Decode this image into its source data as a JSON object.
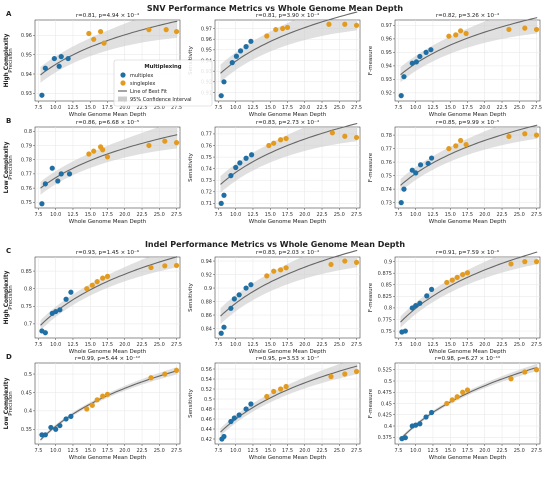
{
  "sections": [
    {
      "title": "SNV Performance Metrics vs Whole Genome Mean Depth"
    },
    {
      "title": "Indel Performance Metrics vs Whole Genome Mean Depth"
    }
  ],
  "legend": {
    "title": "Multiplexing",
    "items": [
      "multiplex",
      "singleplex",
      "Line of Best Fit",
      "95% Confidence Interval"
    ]
  },
  "colors": {
    "multiplex": "#1f6fa5",
    "singleplex": "#e39b1f",
    "fit": "#666666",
    "ci": "#cccccc"
  },
  "chart_data": [
    {
      "panel_letter": "A",
      "row_label": "High Complexity",
      "type": "scatter",
      "stat": "r=0.81, p=4.94 × 10⁻⁴",
      "xlabel": "Whole Genome Mean Depth",
      "ylabel": "Precision",
      "xlim": [
        7,
        28
      ],
      "ylim": [
        0.926,
        0.968
      ],
      "xticks": [
        7.5,
        10.0,
        12.5,
        15.0,
        17.5,
        20.0,
        22.5,
        25.0,
        27.5
      ],
      "yticks": [
        0.93,
        0.94,
        0.95,
        0.96
      ],
      "series": [
        {
          "name": "multiplex",
          "x": [
            8.0,
            8.5,
            9.8,
            10.5,
            10.8,
            11.8
          ],
          "y": [
            0.929,
            0.943,
            0.948,
            0.944,
            0.949,
            0.948
          ]
        },
        {
          "name": "singleplex",
          "x": [
            14.8,
            15.5,
            16.5,
            17.0,
            23.5,
            26.0,
            27.5
          ],
          "y": [
            0.961,
            0.958,
            0.962,
            0.956,
            0.963,
            0.963,
            0.962
          ]
        }
      ]
    },
    {
      "panel_letter": "",
      "row_label": "",
      "type": "scatter",
      "stat": "r=0.81, p=3.90 × 10⁻⁴",
      "xlabel": "Whole Genome Mean Depth",
      "ylabel": "Sensitivity",
      "xlim": [
        7,
        28
      ],
      "ylim": [
        0.902,
        0.978
      ],
      "xticks": [
        7.5,
        10.0,
        12.5,
        15.0,
        17.5,
        20.0,
        22.5,
        25.0,
        27.5
      ],
      "yticks": [
        0.91,
        0.92,
        0.93,
        0.94,
        0.95,
        0.96,
        0.97
      ],
      "series": [
        {
          "name": "multiplex",
          "x": [
            7.9,
            8.3,
            9.5,
            10.1,
            10.7,
            11.5,
            12.2
          ],
          "y": [
            0.907,
            0.92,
            0.938,
            0.944,
            0.949,
            0.953,
            0.958
          ]
        },
        {
          "name": "singleplex",
          "x": [
            14.5,
            15.8,
            16.8,
            17.5,
            23.5,
            25.8,
            27.5
          ],
          "y": [
            0.963,
            0.969,
            0.97,
            0.971,
            0.974,
            0.974,
            0.973
          ]
        }
      ]
    },
    {
      "panel_letter": "",
      "row_label": "",
      "type": "scatter",
      "stat": "r=0.82, p=3.26 × 10⁻⁴",
      "xlabel": "Whole Genome Mean Depth",
      "ylabel": "F-measure",
      "xlim": [
        7,
        28
      ],
      "ylim": [
        0.914,
        0.974
      ],
      "xticks": [
        7.5,
        10.0,
        12.5,
        15.0,
        17.5,
        20.0,
        22.5,
        25.0,
        27.5
      ],
      "yticks": [
        0.92,
        0.93,
        0.94,
        0.95,
        0.96,
        0.97
      ],
      "series": [
        {
          "name": "multiplex",
          "x": [
            7.9,
            8.3,
            9.5,
            10.1,
            10.6,
            11.5,
            12.2
          ],
          "y": [
            0.918,
            0.932,
            0.942,
            0.943,
            0.947,
            0.95,
            0.952
          ]
        },
        {
          "name": "singleplex",
          "x": [
            14.8,
            15.8,
            16.5,
            17.3,
            23.5,
            25.8,
            27.5
          ],
          "y": [
            0.962,
            0.963,
            0.966,
            0.964,
            0.967,
            0.968,
            0.967
          ]
        }
      ]
    },
    {
      "panel_letter": "B",
      "row_label": "Low Complexity",
      "type": "scatter",
      "stat": "r=0.86, p=6.68 × 10⁻⁵",
      "xlabel": "Whole Genome Mean Depth",
      "ylabel": "Precision",
      "xlim": [
        7,
        28
      ],
      "ylim": [
        0.746,
        0.803
      ],
      "xticks": [
        7.5,
        10.0,
        12.5,
        15.0,
        17.5,
        20.0,
        22.5,
        25.0,
        27.5
      ],
      "yticks": [
        0.75,
        0.76,
        0.77,
        0.78,
        0.79,
        0.8
      ],
      "series": [
        {
          "name": "multiplex",
          "x": [
            8.0,
            8.5,
            9.5,
            10.3,
            10.8,
            12.0
          ],
          "y": [
            0.749,
            0.763,
            0.774,
            0.765,
            0.77,
            0.77
          ]
        },
        {
          "name": "singleplex",
          "x": [
            14.8,
            15.5,
            16.5,
            16.8,
            17.5,
            23.5,
            25.8,
            27.5
          ],
          "y": [
            0.784,
            0.786,
            0.789,
            0.787,
            0.782,
            0.79,
            0.793,
            0.792
          ]
        }
      ]
    },
    {
      "panel_letter": "",
      "row_label": "",
      "type": "scatter",
      "stat": "r=0.83, p=2.73 × 10⁻⁴",
      "xlabel": "Whole Genome Mean Depth",
      "ylabel": "Sensitivity",
      "xlim": [
        7,
        28
      ],
      "ylim": [
        0.706,
        0.776
      ],
      "xticks": [
        7.5,
        10.0,
        12.5,
        15.0,
        17.5,
        20.0,
        22.5,
        25.0,
        27.5
      ],
      "yticks": [
        0.71,
        0.72,
        0.73,
        0.74,
        0.75,
        0.76,
        0.77
      ],
      "series": [
        {
          "name": "multiplex",
          "x": [
            7.9,
            8.3,
            9.3,
            10.0,
            10.6,
            11.5,
            12.3
          ],
          "y": [
            0.71,
            0.717,
            0.734,
            0.741,
            0.745,
            0.749,
            0.752
          ]
        },
        {
          "name": "singleplex",
          "x": [
            14.8,
            15.5,
            16.5,
            17.3,
            24.0,
            25.8,
            27.5
          ],
          "y": [
            0.76,
            0.762,
            0.765,
            0.766,
            0.771,
            0.768,
            0.767
          ]
        }
      ]
    },
    {
      "panel_letter": "",
      "row_label": "",
      "type": "scatter",
      "stat": "r=0.85, p=9.99 × 10⁻⁵",
      "xlabel": "Whole Genome Mean Depth",
      "ylabel": "F-measure",
      "xlim": [
        7,
        28
      ],
      "ylim": [
        0.726,
        0.786
      ],
      "xticks": [
        7.5,
        10.0,
        12.5,
        15.0,
        17.5,
        20.0,
        22.5,
        25.0,
        27.5
      ],
      "yticks": [
        0.73,
        0.74,
        0.75,
        0.76,
        0.77,
        0.78
      ],
      "series": [
        {
          "name": "multiplex",
          "x": [
            7.9,
            8.3,
            9.5,
            10.0,
            10.7,
            11.8,
            12.3
          ],
          "y": [
            0.73,
            0.74,
            0.754,
            0.752,
            0.758,
            0.759,
            0.763
          ]
        },
        {
          "name": "singleplex",
          "x": [
            14.8,
            15.8,
            16.5,
            17.3,
            23.5,
            25.8,
            27.5
          ],
          "y": [
            0.77,
            0.772,
            0.776,
            0.773,
            0.779,
            0.781,
            0.78
          ]
        }
      ]
    },
    {
      "panel_letter": "C",
      "row_label": "High Complexity",
      "type": "scatter",
      "stat": "r=0.93, p=1.45 × 10⁻⁶",
      "xlabel": "Whole Genome Mean Depth",
      "ylabel": "Precision",
      "xlim": [
        7,
        28
      ],
      "ylim": [
        0.66,
        0.89
      ],
      "xticks": [
        7.5,
        10.0,
        12.5,
        15.0,
        17.5,
        20.0,
        22.5,
        25.0,
        27.5
      ],
      "yticks": [
        0.7,
        0.75,
        0.8,
        0.85
      ],
      "series": [
        {
          "name": "multiplex",
          "x": [
            8.0,
            8.5,
            9.5,
            10.0,
            10.6,
            11.5,
            12.2
          ],
          "y": [
            0.68,
            0.675,
            0.73,
            0.735,
            0.74,
            0.77,
            0.79
          ]
        },
        {
          "name": "singleplex",
          "x": [
            14.5,
            15.3,
            16.0,
            16.8,
            17.5,
            23.8,
            25.8,
            27.5
          ],
          "y": [
            0.8,
            0.81,
            0.82,
            0.83,
            0.835,
            0.86,
            0.865,
            0.866
          ]
        }
      ]
    },
    {
      "panel_letter": "",
      "row_label": "",
      "type": "scatter",
      "stat": "r=0.83, p=2.03 × 10⁻⁴",
      "xlabel": "Whole Genome Mean Depth",
      "ylabel": "Sensitivity",
      "xlim": [
        7,
        28
      ],
      "ylim": [
        0.826,
        0.946
      ],
      "xticks": [
        7.5,
        10.0,
        12.5,
        15.0,
        17.5,
        20.0,
        22.5,
        25.0,
        27.5
      ],
      "yticks": [
        0.84,
        0.86,
        0.88,
        0.9,
        0.92,
        0.94
      ],
      "series": [
        {
          "name": "multiplex",
          "x": [
            7.9,
            8.3,
            9.3,
            9.8,
            10.5,
            11.5,
            12.2
          ],
          "y": [
            0.833,
            0.842,
            0.87,
            0.884,
            0.89,
            0.9,
            0.905
          ]
        },
        {
          "name": "singleplex",
          "x": [
            14.5,
            15.5,
            16.5,
            17.3,
            23.8,
            25.8,
            27.5
          ],
          "y": [
            0.918,
            0.925,
            0.927,
            0.93,
            0.935,
            0.94,
            0.938
          ]
        }
      ]
    },
    {
      "panel_letter": "",
      "row_label": "",
      "type": "scatter",
      "stat": "r=0.91, p=7.59 × 10⁻⁶",
      "xlabel": "Whole Genome Mean Depth",
      "ylabel": "F-measure",
      "xlim": [
        7,
        28
      ],
      "ylim": [
        0.735,
        0.91
      ],
      "xticks": [
        7.5,
        10.0,
        12.5,
        15.0,
        17.5,
        20.0,
        22.5,
        25.0,
        27.5
      ],
      "yticks": [
        0.75,
        0.775,
        0.8,
        0.825,
        0.85,
        0.875,
        0.9
      ],
      "series": [
        {
          "name": "multiplex",
          "x": [
            8.0,
            8.5,
            9.5,
            10.0,
            10.6,
            11.6,
            12.3
          ],
          "y": [
            0.748,
            0.75,
            0.8,
            0.805,
            0.81,
            0.826,
            0.84
          ]
        },
        {
          "name": "singleplex",
          "x": [
            14.5,
            15.3,
            16.0,
            16.8,
            17.5,
            23.8,
            25.8,
            27.5
          ],
          "y": [
            0.855,
            0.86,
            0.866,
            0.872,
            0.876,
            0.895,
            0.9,
            0.9
          ]
        }
      ]
    },
    {
      "panel_letter": "D",
      "row_label": "Low Complexity",
      "type": "scatter",
      "stat": "r=0.99, p=5.44 × 10⁻¹²",
      "xlabel": "Whole Genome Mean Depth",
      "ylabel": "Precision",
      "xlim": [
        7,
        28
      ],
      "ylim": [
        0.31,
        0.53
      ],
      "xticks": [
        7.5,
        10.0,
        12.5,
        15.0,
        17.5,
        20.0,
        22.5,
        25.0,
        27.5
      ],
      "yticks": [
        0.35,
        0.4,
        0.45,
        0.5
      ],
      "series": [
        {
          "name": "multiplex",
          "x": [
            8.0,
            8.5,
            9.3,
            10.0,
            10.6,
            11.5,
            12.2
          ],
          "y": [
            0.335,
            0.335,
            0.355,
            0.35,
            0.36,
            0.378,
            0.385
          ]
        },
        {
          "name": "singleplex",
          "x": [
            14.5,
            15.3,
            16.0,
            16.8,
            17.5,
            23.8,
            25.8,
            27.5
          ],
          "y": [
            0.405,
            0.415,
            0.43,
            0.44,
            0.445,
            0.49,
            0.5,
            0.51
          ]
        }
      ]
    },
    {
      "panel_letter": "",
      "row_label": "",
      "type": "scatter",
      "stat": "r=0.95, p=3.53 × 10⁻⁷",
      "xlabel": "Whole Genome Mean Depth",
      "ylabel": "Sensitivity",
      "xlim": [
        7,
        28
      ],
      "ylim": [
        0.41,
        0.572
      ],
      "xticks": [
        7.5,
        10.0,
        12.5,
        15.0,
        17.5,
        20.0,
        22.5,
        25.0,
        27.5
      ],
      "yticks": [
        0.42,
        0.44,
        0.46,
        0.48,
        0.5,
        0.52,
        0.54,
        0.56
      ],
      "series": [
        {
          "name": "multiplex",
          "x": [
            8.0,
            8.3,
            9.3,
            9.8,
            10.5,
            11.5,
            12.2
          ],
          "y": [
            0.42,
            0.425,
            0.455,
            0.462,
            0.468,
            0.48,
            0.49
          ]
        },
        {
          "name": "singleplex",
          "x": [
            14.5,
            15.5,
            16.5,
            17.3,
            23.8,
            25.8,
            27.5
          ],
          "y": [
            0.505,
            0.515,
            0.52,
            0.525,
            0.545,
            0.55,
            0.555
          ]
        }
      ]
    },
    {
      "panel_letter": "",
      "row_label": "",
      "type": "scatter",
      "stat": "r=0.98, p=6.27 × 10⁻¹⁰",
      "xlabel": "Whole Genome Mean Depth",
      "ylabel": "F-measure",
      "xlim": [
        7,
        28
      ],
      "ylim": [
        0.36,
        0.54
      ],
      "xticks": [
        7.5,
        10.0,
        12.5,
        15.0,
        17.5,
        20.0,
        22.5,
        25.0,
        27.5
      ],
      "yticks": [
        0.375,
        0.4,
        0.425,
        0.45,
        0.475,
        0.5,
        0.525
      ],
      "series": [
        {
          "name": "multiplex",
          "x": [
            8.0,
            8.5,
            9.5,
            10.0,
            10.6,
            11.5,
            12.3
          ],
          "y": [
            0.372,
            0.374,
            0.4,
            0.402,
            0.405,
            0.42,
            0.43
          ]
        },
        {
          "name": "singleplex",
          "x": [
            14.5,
            15.3,
            16.0,
            16.8,
            17.5,
            23.8,
            25.8,
            27.5
          ],
          "y": [
            0.45,
            0.458,
            0.465,
            0.475,
            0.48,
            0.505,
            0.52,
            0.525
          ]
        }
      ]
    }
  ]
}
